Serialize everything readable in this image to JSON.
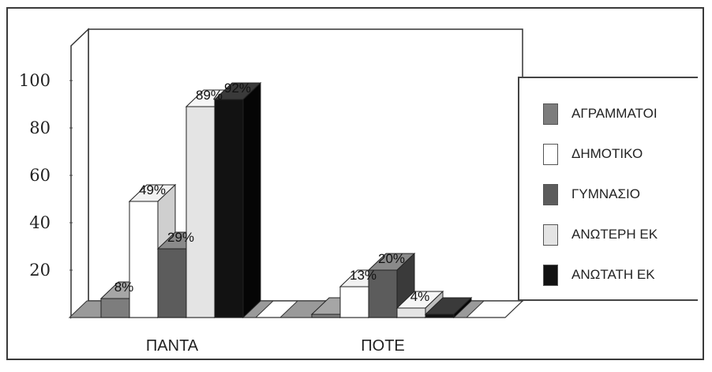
{
  "chart_data": {
    "type": "bar",
    "categories": [
      "ΠΑΝΤΑ",
      "ΠΟΤΕ"
    ],
    "series": [
      {
        "name": "ΑΓΡΑΜΜΑΤΟΙ",
        "values": [
          8,
          0
        ],
        "labels": [
          "8%",
          ""
        ],
        "color": "#7d7d7d",
        "top": "#a6a6a6",
        "side": "#4e4e4e"
      },
      {
        "name": "ΔΗΜΟΤΙΚΟ",
        "values": [
          49,
          13
        ],
        "labels": [
          "49%",
          "13%"
        ],
        "color": "#ffffff",
        "top": "#f1f1f1",
        "side": "#cfcfcf"
      },
      {
        "name": "ΓΥΜΝΑΣΙΟ",
        "values": [
          29,
          20
        ],
        "labels": [
          "29%",
          "20%"
        ],
        "color": "#5c5c5c",
        "top": "#8a8a8a",
        "side": "#3a3a3a"
      },
      {
        "name": "ΑΝΩΤΕΡΗ ΕΚ",
        "values": [
          89,
          4
        ],
        "labels": [
          "89%",
          "4%"
        ],
        "color": "#e4e4e4",
        "top": "#f6f6f6",
        "side": "#bdbdbd"
      },
      {
        "name": "ΑΝΩΤΑΤΗ ΕΚ",
        "values": [
          92,
          0
        ],
        "labels": [
          "92%",
          ""
        ],
        "color": "#121212",
        "top": "#3a3a3a",
        "side": "#050505"
      }
    ],
    "yticks": [
      "100",
      "80",
      "60",
      "40",
      "20"
    ],
    "ylim": [
      0,
      100
    ],
    "legend_position": "right",
    "grid": false
  }
}
